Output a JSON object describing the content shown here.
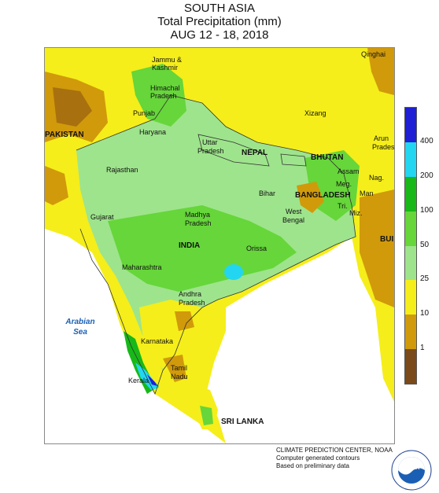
{
  "title": {
    "line1": "SOUTH ASIA",
    "line2": "Total Precipitation (mm)",
    "line3": "AUG 12 - 18, 2018"
  },
  "regions": {
    "qinghai": "Qinghai",
    "jammu": "Jammu &",
    "kashmir": "Kashmir",
    "himachal": "Himachal",
    "pradesh_h": "Pradesh",
    "punjab": "Punjab",
    "haryana": "Haryana",
    "pakistan": "PAKISTAN",
    "xizang": "Xizang",
    "arun": "Arun",
    "pradesh_a": "Prades",
    "uttar": "Uttar",
    "pradesh_u": "Pradesh",
    "nepal": "NEPAL",
    "bhutan": "BHUTAN",
    "rajasthan": "Rajasthan",
    "assam": "Assam",
    "nag": "Nag.",
    "bangladesh": "BANGLADESH",
    "man": "Man",
    "meg": "Meg.",
    "bihar": "Bihar",
    "tri": "Tri.",
    "west": "West",
    "bengal": "Bengal",
    "miz": "Miz.",
    "gujarat": "Gujarat",
    "madhya": "Madhya",
    "pradesh_m": "Pradesh",
    "bur": "BUI",
    "india": "INDIA",
    "orissa": "Orissa",
    "maharashtra": "Maharashtra",
    "andhra": "Andhra",
    "pradesh_an": "Pradesh",
    "karnataka": "Karnataka",
    "tamil": "Tamil",
    "nadu": "Nadu",
    "kerala": "Kerala",
    "srilanka": "SRI LANKA",
    "arabian": "Arabian",
    "sea": "Sea"
  },
  "legend": {
    "colors": [
      "#1f1fd6",
      "#22d6f2",
      "#18b818",
      "#66d63a",
      "#9ee48c",
      "#f5ee1a",
      "#d19a0a",
      "#7a4a1a"
    ],
    "ticks": [
      "400",
      "200",
      "100",
      "50",
      "25",
      "10",
      "1"
    ]
  },
  "footer": {
    "line1": "CLIMATE PREDICTION CENTER, NOAA",
    "line2": "Computer generated contours",
    "line3": "Based on preliminary data"
  },
  "logo": {
    "text": "NOAA",
    "ring_text": "NATIONAL OCEANIC AND ATMOSPHERIC ADMINISTRATION"
  }
}
